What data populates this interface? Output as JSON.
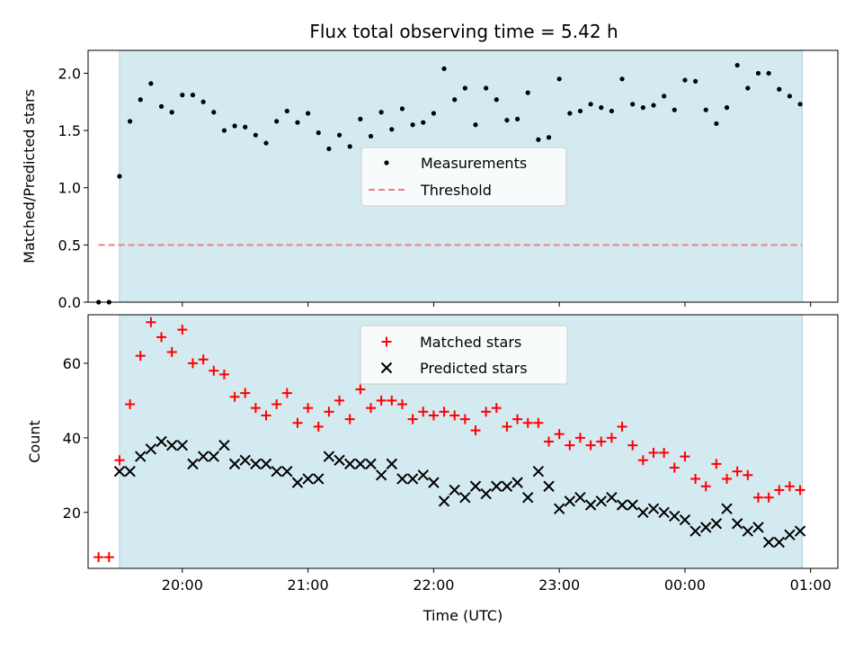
{
  "title": "Flux total observing time = 5.42 h",
  "colors": {
    "band": "#d4eaf1",
    "threshold": "#f08080",
    "measurement": "#000000",
    "matched": "#ff0000",
    "predicted": "#000000"
  },
  "chart_data": [
    {
      "type": "scatter",
      "ylabel": "Matched/Predicted stars",
      "xlabel": "",
      "ylim": [
        0,
        2.2
      ],
      "yticks": [
        0.0,
        0.5,
        1.0,
        1.5,
        2.0
      ],
      "ytick_labels": [
        "0.0",
        "0.5",
        "1.0",
        "1.5",
        "2.0"
      ],
      "legend": {
        "placement": "center",
        "entries": [
          "Measurements",
          "Threshold"
        ]
      },
      "shaded_interval": [
        "19:30",
        "00:56"
      ],
      "threshold": {
        "y": 0.5,
        "x_range": [
          "19:20",
          "00:56"
        ]
      },
      "series": [
        {
          "name": "Measurements",
          "x": [
            "19:20",
            "19:25",
            "19:30",
            "19:35",
            "19:40",
            "19:45",
            "19:50",
            "19:55",
            "20:00",
            "20:05",
            "20:10",
            "20:15",
            "20:20",
            "20:25",
            "20:30",
            "20:35",
            "20:40",
            "20:45",
            "20:50",
            "20:55",
            "21:00",
            "21:05",
            "21:10",
            "21:15",
            "21:20",
            "21:25",
            "21:30",
            "21:35",
            "21:40",
            "21:45",
            "21:50",
            "21:55",
            "22:00",
            "22:05",
            "22:10",
            "22:15",
            "22:20",
            "22:25",
            "22:30",
            "22:35",
            "22:40",
            "22:45",
            "22:50",
            "22:55",
            "23:00",
            "23:05",
            "23:10",
            "23:15",
            "23:20",
            "23:25",
            "23:30",
            "23:35",
            "23:40",
            "23:45",
            "23:50",
            "23:55",
            "00:00",
            "00:05",
            "00:10",
            "00:15",
            "00:20",
            "00:25",
            "00:30",
            "00:35",
            "00:40",
            "00:45",
            "00:50",
            "00:55"
          ],
          "y": [
            0.0,
            0.0,
            1.1,
            1.58,
            1.77,
            1.91,
            1.71,
            1.66,
            1.81,
            1.81,
            1.75,
            1.66,
            1.5,
            1.54,
            1.53,
            1.46,
            1.39,
            1.58,
            1.67,
            1.57,
            1.65,
            1.48,
            1.34,
            1.46,
            1.36,
            1.6,
            1.45,
            1.66,
            1.51,
            1.69,
            1.55,
            1.57,
            1.65,
            2.04,
            1.77,
            1.87,
            1.55,
            1.87,
            1.77,
            1.59,
            1.6,
            1.83,
            1.42,
            1.44,
            1.95,
            1.65,
            1.67,
            1.73,
            1.7,
            1.67,
            1.95,
            1.73,
            1.7,
            1.72,
            1.8,
            1.68,
            1.94,
            1.93,
            1.68,
            1.56,
            1.7,
            2.07,
            1.87,
            2.0,
            2.0,
            1.86,
            1.8,
            1.73
          ]
        }
      ]
    },
    {
      "type": "scatter",
      "ylabel": "Count",
      "xlabel": "Time (UTC)",
      "ylim": [
        5,
        73
      ],
      "yticks": [
        20,
        40,
        60
      ],
      "ytick_labels": [
        "20",
        "40",
        "60"
      ],
      "xticks": [
        "20:00",
        "21:00",
        "22:00",
        "23:00",
        "00:00",
        "01:00"
      ],
      "legend": {
        "placement": "upper center",
        "entries": [
          "Matched stars",
          "Predicted stars"
        ]
      },
      "shaded_interval": [
        "19:30",
        "00:56"
      ],
      "series": [
        {
          "name": "Matched stars",
          "x": [
            "19:20",
            "19:25",
            "19:30",
            "19:35",
            "19:40",
            "19:45",
            "19:50",
            "19:55",
            "20:00",
            "20:05",
            "20:10",
            "20:15",
            "20:20",
            "20:25",
            "20:30",
            "20:35",
            "20:40",
            "20:45",
            "20:50",
            "20:55",
            "21:00",
            "21:05",
            "21:10",
            "21:15",
            "21:20",
            "21:25",
            "21:30",
            "21:35",
            "21:40",
            "21:45",
            "21:50",
            "21:55",
            "22:00",
            "22:05",
            "22:10",
            "22:15",
            "22:20",
            "22:25",
            "22:30",
            "22:35",
            "22:40",
            "22:45",
            "22:50",
            "22:55",
            "23:00",
            "23:05",
            "23:10",
            "23:15",
            "23:20",
            "23:25",
            "23:30",
            "23:35",
            "23:40",
            "23:45",
            "23:50",
            "23:55",
            "00:00",
            "00:05",
            "00:10",
            "00:15",
            "00:20",
            "00:25",
            "00:30",
            "00:35",
            "00:40",
            "00:45",
            "00:50",
            "00:55"
          ],
          "y": [
            8,
            8,
            34,
            49,
            62,
            71,
            67,
            63,
            69,
            60,
            61,
            58,
            57,
            51,
            52,
            48,
            46,
            49,
            52,
            44,
            48,
            43,
            47,
            50,
            45,
            53,
            48,
            50,
            50,
            49,
            45,
            47,
            46,
            47,
            46,
            45,
            42,
            47,
            48,
            43,
            45,
            44,
            44,
            39,
            41,
            38,
            40,
            38,
            39,
            40,
            43,
            38,
            34,
            36,
            36,
            32,
            35,
            29,
            27,
            33,
            29,
            31,
            30,
            24,
            24,
            26,
            27,
            26
          ]
        },
        {
          "name": "Predicted stars",
          "x": [
            "19:30",
            "19:35",
            "19:40",
            "19:45",
            "19:50",
            "19:55",
            "20:00",
            "20:05",
            "20:10",
            "20:15",
            "20:20",
            "20:25",
            "20:30",
            "20:35",
            "20:40",
            "20:45",
            "20:50",
            "20:55",
            "21:00",
            "21:05",
            "21:10",
            "21:15",
            "21:20",
            "21:25",
            "21:30",
            "21:35",
            "21:40",
            "21:45",
            "21:50",
            "21:55",
            "22:00",
            "22:05",
            "22:10",
            "22:15",
            "22:20",
            "22:25",
            "22:30",
            "22:35",
            "22:40",
            "22:45",
            "22:50",
            "22:55",
            "23:00",
            "23:05",
            "23:10",
            "23:15",
            "23:20",
            "23:25",
            "23:30",
            "23:35",
            "23:40",
            "23:45",
            "23:50",
            "23:55",
            "00:00",
            "00:05",
            "00:10",
            "00:15",
            "00:20",
            "00:25",
            "00:30",
            "00:35",
            "00:40",
            "00:45",
            "00:50",
            "00:55"
          ],
          "y": [
            31,
            31,
            35,
            37,
            39,
            38,
            38,
            33,
            35,
            35,
            38,
            33,
            34,
            33,
            33,
            31,
            31,
            28,
            29,
            29,
            35,
            34,
            33,
            33,
            33,
            30,
            33,
            29,
            29,
            30,
            28,
            23,
            26,
            24,
            27,
            25,
            27,
            27,
            28,
            24,
            31,
            27,
            21,
            23,
            24,
            22,
            23,
            24,
            22,
            22,
            20,
            21,
            20,
            19,
            18,
            15,
            16,
            17,
            21,
            17,
            15,
            16,
            12,
            12,
            14,
            15
          ]
        }
      ]
    }
  ]
}
